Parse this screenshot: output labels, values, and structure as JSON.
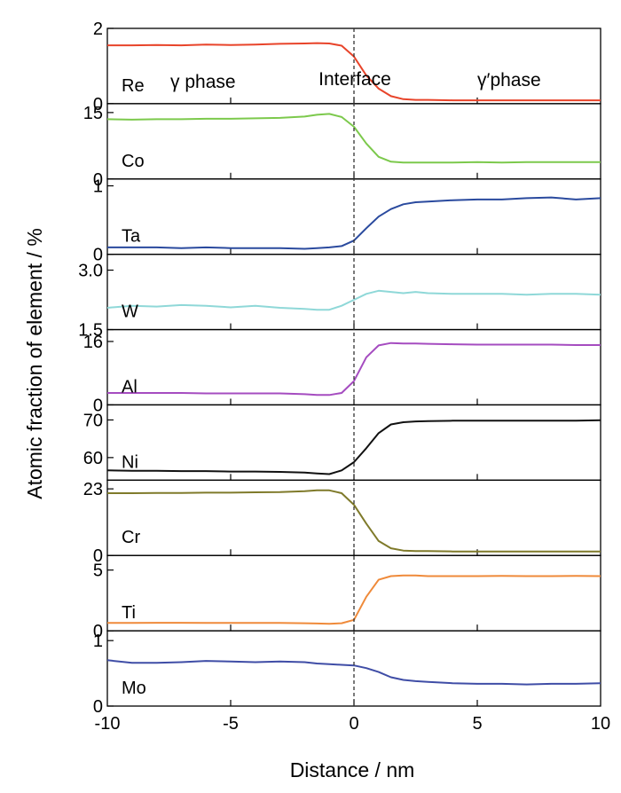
{
  "chart_data": {
    "type": "line",
    "xlabel": "Distance / nm",
    "ylabel": "Atomic fraction of element / %",
    "xlim": [
      -10,
      10
    ],
    "xticks": [
      -10,
      -5,
      0,
      5,
      10
    ],
    "x_tick_labels": [
      "-10",
      "-5",
      "0",
      "5",
      "10"
    ],
    "interface_x": 0,
    "annotations": {
      "gamma": "γ phase",
      "interface": "Interface",
      "gamma_prime": "γ′phase"
    },
    "x": [
      -10,
      -9,
      -8,
      -7,
      -6,
      -5,
      -4,
      -3,
      -2,
      -1.5,
      -1,
      -0.5,
      0,
      0.5,
      1,
      1.5,
      2,
      2.5,
      3,
      4,
      5,
      6,
      7,
      8,
      9,
      10
    ],
    "panels": [
      {
        "name": "Re",
        "color": "#e8442a",
        "ylim": [
          0,
          2
        ],
        "yticks": [
          0,
          2
        ],
        "ytick_labels": [
          "0",
          "2"
        ],
        "values": [
          1.55,
          1.55,
          1.56,
          1.55,
          1.57,
          1.56,
          1.57,
          1.59,
          1.6,
          1.61,
          1.6,
          1.54,
          1.25,
          0.75,
          0.4,
          0.2,
          0.12,
          0.1,
          0.1,
          0.09,
          0.09,
          0.09,
          0.09,
          0.09,
          0.09,
          0.09
        ]
      },
      {
        "name": "Co",
        "color": "#7cc94c",
        "ylim": [
          0,
          17
        ],
        "yticks": [
          0,
          15
        ],
        "ytick_labels": [
          "0",
          "15"
        ],
        "values": [
          13.5,
          13.4,
          13.5,
          13.5,
          13.6,
          13.6,
          13.7,
          13.8,
          14.1,
          14.5,
          14.7,
          14.0,
          11.8,
          8.0,
          5.0,
          3.9,
          3.7,
          3.7,
          3.7,
          3.7,
          3.8,
          3.7,
          3.8,
          3.8,
          3.8,
          3.8
        ]
      },
      {
        "name": "Ta",
        "color": "#2a4a9e",
        "ylim": [
          0,
          1.1
        ],
        "yticks": [
          0,
          1
        ],
        "ytick_labels": [
          "0",
          "1"
        ],
        "values": [
          0.1,
          0.1,
          0.1,
          0.09,
          0.1,
          0.09,
          0.09,
          0.09,
          0.08,
          0.09,
          0.1,
          0.12,
          0.2,
          0.38,
          0.55,
          0.66,
          0.73,
          0.76,
          0.77,
          0.79,
          0.8,
          0.8,
          0.82,
          0.83,
          0.8,
          0.82
        ]
      },
      {
        "name": "W",
        "color": "#8fd8d8",
        "ylim": [
          1.5,
          3.4
        ],
        "yticks": [
          1.5,
          3.0
        ],
        "ytick_labels": [
          "1.5",
          "3.0"
        ],
        "values": [
          2.05,
          2.1,
          2.08,
          2.12,
          2.1,
          2.06,
          2.1,
          2.05,
          2.02,
          2.0,
          2.0,
          2.1,
          2.25,
          2.4,
          2.48,
          2.45,
          2.42,
          2.45,
          2.42,
          2.4,
          2.4,
          2.4,
          2.38,
          2.4,
          2.4,
          2.38
        ]
      },
      {
        "name": "Al",
        "color": "#a54cc0",
        "ylim": [
          0,
          19
        ],
        "yticks": [
          0,
          16
        ],
        "ytick_labels": [
          "0",
          "16"
        ],
        "values": [
          3.0,
          3.0,
          3.0,
          3.0,
          2.9,
          2.9,
          2.9,
          2.9,
          2.7,
          2.5,
          2.5,
          3.0,
          6.0,
          12.0,
          15.0,
          15.6,
          15.5,
          15.5,
          15.4,
          15.3,
          15.2,
          15.2,
          15.2,
          15.2,
          15.1,
          15.1
        ]
      },
      {
        "name": "Ni",
        "color": "#111111",
        "ylim": [
          54,
          74
        ],
        "yticks": [
          60,
          70
        ],
        "ytick_labels": [
          "60",
          "70"
        ],
        "values": [
          56.6,
          56.5,
          56.5,
          56.4,
          56.4,
          56.3,
          56.3,
          56.2,
          56.0,
          55.8,
          55.6,
          56.6,
          58.8,
          62.5,
          66.5,
          68.8,
          69.4,
          69.6,
          69.7,
          69.8,
          69.8,
          69.8,
          69.8,
          69.8,
          69.8,
          69.9
        ]
      },
      {
        "name": "Cr",
        "color": "#7f7a2a",
        "ylim": [
          0,
          26
        ],
        "yticks": [
          0,
          23
        ],
        "ytick_labels": [
          "0",
          "23"
        ],
        "values": [
          21.5,
          21.5,
          21.6,
          21.6,
          21.7,
          21.7,
          21.8,
          21.9,
          22.2,
          22.5,
          22.5,
          21.5,
          17.5,
          11.0,
          5.0,
          2.5,
          1.7,
          1.5,
          1.5,
          1.4,
          1.4,
          1.4,
          1.4,
          1.4,
          1.4,
          1.4
        ]
      },
      {
        "name": "Ti",
        "color": "#ef8a3a",
        "ylim": [
          0,
          6.2
        ],
        "yticks": [
          0,
          5
        ],
        "ytick_labels": [
          "0",
          "5"
        ],
        "values": [
          0.65,
          0.65,
          0.66,
          0.66,
          0.65,
          0.65,
          0.65,
          0.64,
          0.62,
          0.6,
          0.58,
          0.62,
          0.9,
          2.8,
          4.2,
          4.5,
          4.55,
          4.55,
          4.5,
          4.5,
          4.5,
          4.52,
          4.5,
          4.5,
          4.52,
          4.5
        ]
      },
      {
        "name": "Mo",
        "color": "#3f4da6",
        "ylim": [
          0,
          1.15
        ],
        "yticks": [
          0,
          1
        ],
        "ytick_labels": [
          "0",
          "1"
        ],
        "values": [
          0.7,
          0.66,
          0.66,
          0.67,
          0.69,
          0.68,
          0.67,
          0.68,
          0.67,
          0.65,
          0.64,
          0.63,
          0.62,
          0.58,
          0.52,
          0.44,
          0.4,
          0.38,
          0.37,
          0.35,
          0.34,
          0.34,
          0.33,
          0.34,
          0.34,
          0.35
        ]
      }
    ]
  }
}
